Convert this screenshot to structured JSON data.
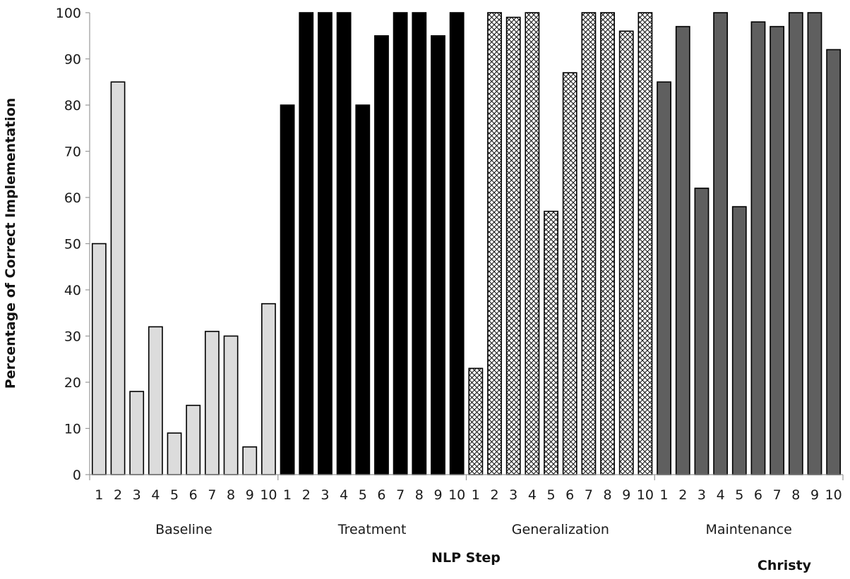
{
  "chart_data": {
    "type": "bar",
    "title": "",
    "xlabel": "NLP Step",
    "ylabel": "Percentage of Correct Implementation",
    "participant_label": "Christy",
    "ylim": [
      0,
      100
    ],
    "yticks": [
      0,
      10,
      20,
      30,
      40,
      50,
      60,
      70,
      80,
      90,
      100
    ],
    "grid": false,
    "legend": "none",
    "categories": [
      "1",
      "2",
      "3",
      "4",
      "5",
      "6",
      "7",
      "8",
      "9",
      "10"
    ],
    "series": [
      {
        "name": "Baseline",
        "fill": "#dcdcdc",
        "pattern": "solid",
        "values": [
          50,
          85,
          18,
          32,
          9,
          15,
          31,
          30,
          6,
          37
        ]
      },
      {
        "name": "Treatment",
        "fill": "#000000",
        "pattern": "solid",
        "values": [
          80,
          100,
          100,
          100,
          80,
          95,
          100,
          100,
          95,
          100
        ]
      },
      {
        "name": "Generalization",
        "fill": "#ffffff",
        "pattern": "crosshatch",
        "values": [
          23,
          100,
          99,
          100,
          57,
          87,
          100,
          100,
          96,
          100
        ]
      },
      {
        "name": "Maintenance",
        "fill": "#5f5f5f",
        "pattern": "solid",
        "values": [
          85,
          97,
          62,
          100,
          58,
          98,
          97,
          100,
          100,
          92
        ]
      }
    ]
  }
}
